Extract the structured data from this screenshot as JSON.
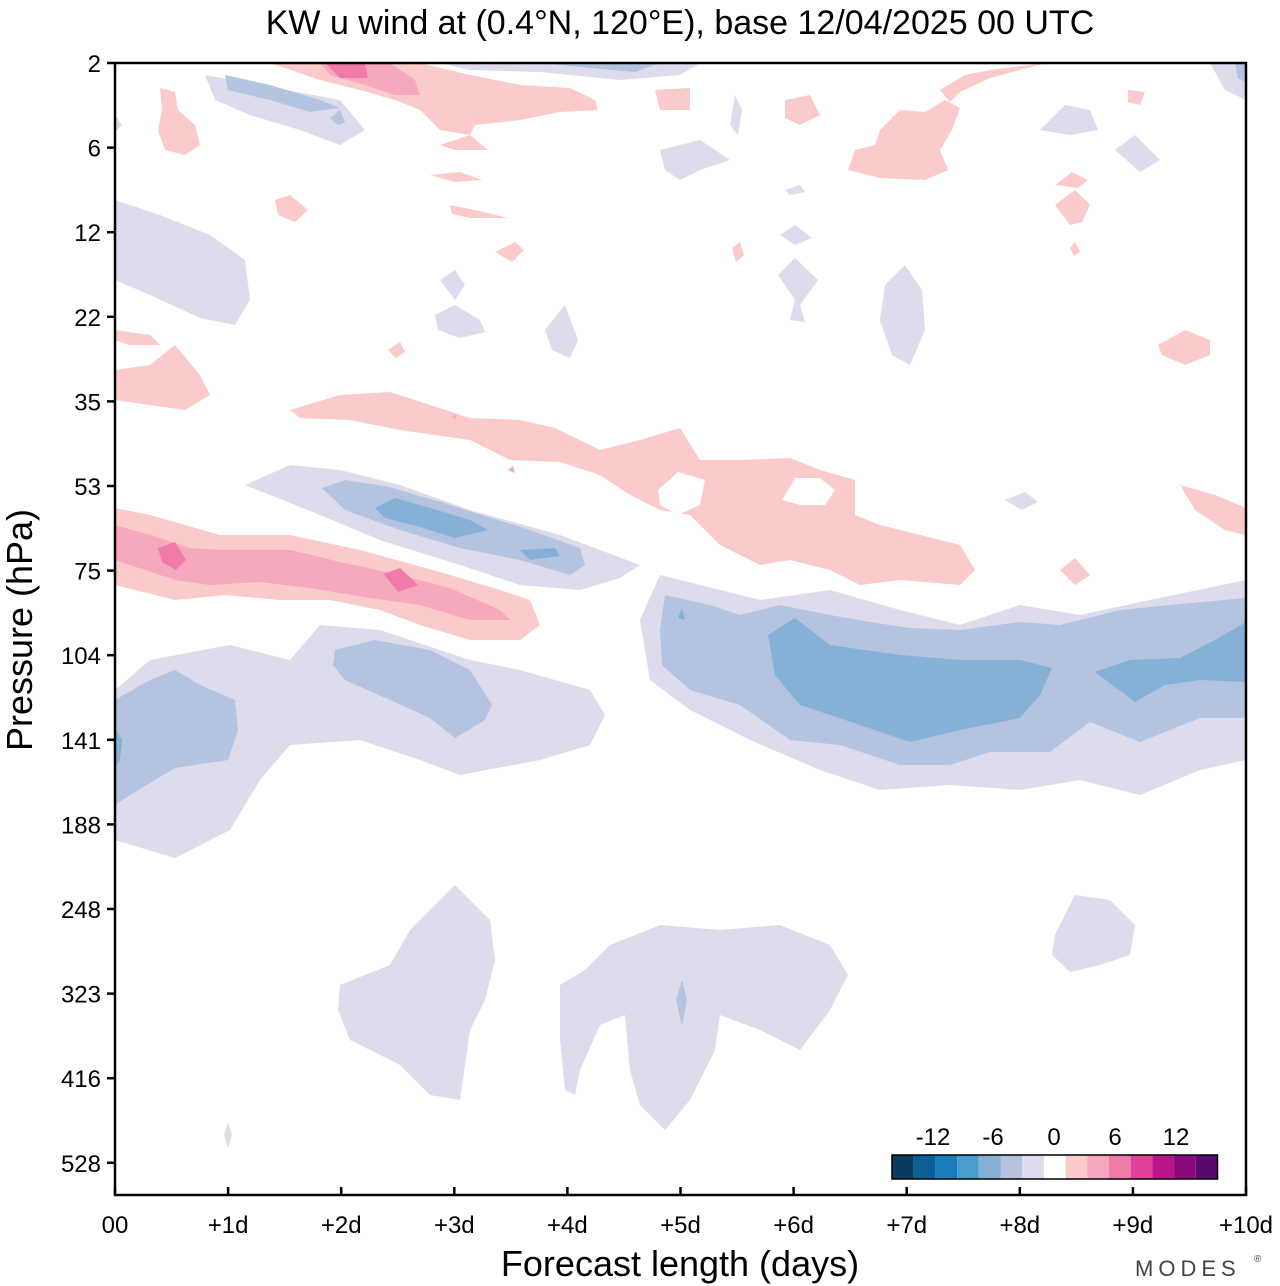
{
  "chart_data": {
    "type": "heatmap",
    "title": "KW u wind at (0.4°N, 120°E),  base 12/04/2025  00 UTC",
    "xlabel": "Forecast length (days)",
    "ylabel": "Pressure (hPa)",
    "x_ticks": [
      "00",
      "+1d",
      "+2d",
      "+3d",
      "+4d",
      "+5d",
      "+6d",
      "+7d",
      "+8d",
      "+9d",
      "+10d"
    ],
    "y_ticks": [
      "2",
      "6",
      "12",
      "22",
      "35",
      "53",
      "75",
      "104",
      "141",
      "188",
      "248",
      "323",
      "416",
      "528"
    ],
    "xlim": [
      0,
      10
    ],
    "colorbar": {
      "tick_labels": [
        "-12",
        "-6",
        "0",
        "6",
        "12"
      ],
      "colors": [
        "#0b3c5d",
        "#0b5f94",
        "#1a7dbb",
        "#4a9ccc",
        "#86b1d6",
        "#b3c3e0",
        "#dcdcec",
        "#ffffff",
        "#fbcaca",
        "#f6a8bd",
        "#f07aa8",
        "#e0419a",
        "#b8158f",
        "#8a0a7e",
        "#5a0a6e"
      ]
    },
    "features": [
      {
        "name": "Positive band near 75 hPa",
        "level": 9,
        "days": [
          0,
          3.7
        ],
        "pressure": "60-90 hPa",
        "max_u": 9
      },
      {
        "name": "Negative band near 60 hPa",
        "level": -6,
        "days": [
          1.2,
          4.6
        ],
        "pressure": "45-80 hPa",
        "min_u": -6
      },
      {
        "name": "Positive band 35-75 hPa",
        "level": 3,
        "days": [
          1.5,
          7.6
        ],
        "pressure": "35-80 hPa"
      },
      {
        "name": "Negative band 90-180 hPa",
        "level": -6,
        "days": [
          4.7,
          10
        ],
        "pressure": "85-180 hPa",
        "min_u": -6
      },
      {
        "name": "Negative region 104-200 hPa",
        "level": -3,
        "days": [
          0,
          4.3
        ],
        "pressure": "95-200 hPa"
      },
      {
        "name": "Weak negatives 250-500 hPa",
        "level": -1.5,
        "days": [
          2,
          6.5
        ],
        "pressure": "250-500 hPa"
      }
    ]
  },
  "logo": "MODES"
}
